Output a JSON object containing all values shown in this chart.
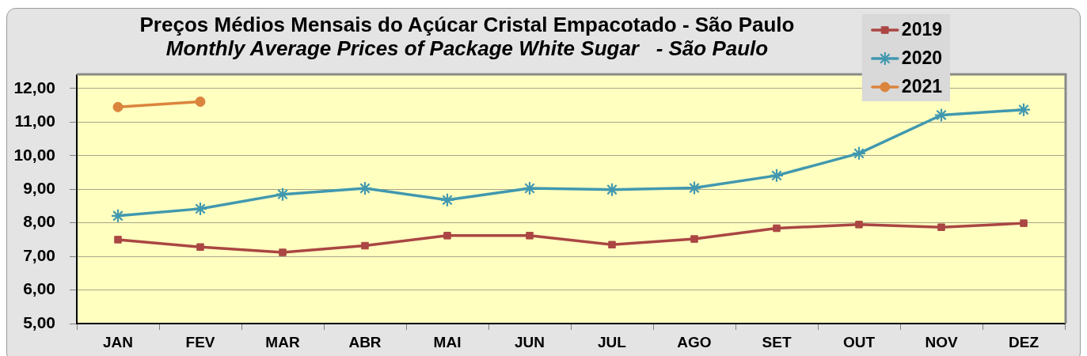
{
  "chart_data": {
    "type": "line",
    "title": "Preços Médios Mensais do Açúcar Cristal Empacotado - São Paulo",
    "subtitle": "Monthly Average Prices of Package White Sugar   - São Paulo",
    "categories": [
      "JAN",
      "FEV",
      "MAR",
      "ABR",
      "MAI",
      "JUN",
      "JUL",
      "AGO",
      "SET",
      "OUT",
      "NOV",
      "DEZ"
    ],
    "series": [
      {
        "name": "2019",
        "color": "#aa4643",
        "marker": "square",
        "values": [
          7.5,
          7.28,
          7.12,
          7.32,
          7.62,
          7.62,
          7.35,
          7.52,
          7.84,
          7.95,
          7.87,
          7.99
        ]
      },
      {
        "name": "2020",
        "color": "#4198af",
        "marker": "star",
        "values": [
          8.21,
          8.42,
          8.85,
          9.03,
          8.68,
          9.03,
          8.99,
          9.04,
          9.41,
          10.07,
          11.21,
          11.37
        ]
      },
      {
        "name": "2021",
        "color": "#db843d",
        "marker": "circle",
        "values": [
          11.45,
          11.61,
          null,
          null,
          null,
          null,
          null,
          null,
          null,
          null,
          null,
          null
        ]
      }
    ],
    "ylim": [
      5,
      12.4
    ],
    "yticks": [
      {
        "value": 5,
        "label": "5,00"
      },
      {
        "value": 6,
        "label": "6,00"
      },
      {
        "value": 7,
        "label": "7,00"
      },
      {
        "value": 8,
        "label": "8,00"
      },
      {
        "value": 9,
        "label": "9,00"
      },
      {
        "value": 10,
        "label": "10,00"
      },
      {
        "value": 11,
        "label": "11,00"
      },
      {
        "value": 12,
        "label": "12,00"
      }
    ],
    "grid": "y",
    "legend": "top right"
  }
}
